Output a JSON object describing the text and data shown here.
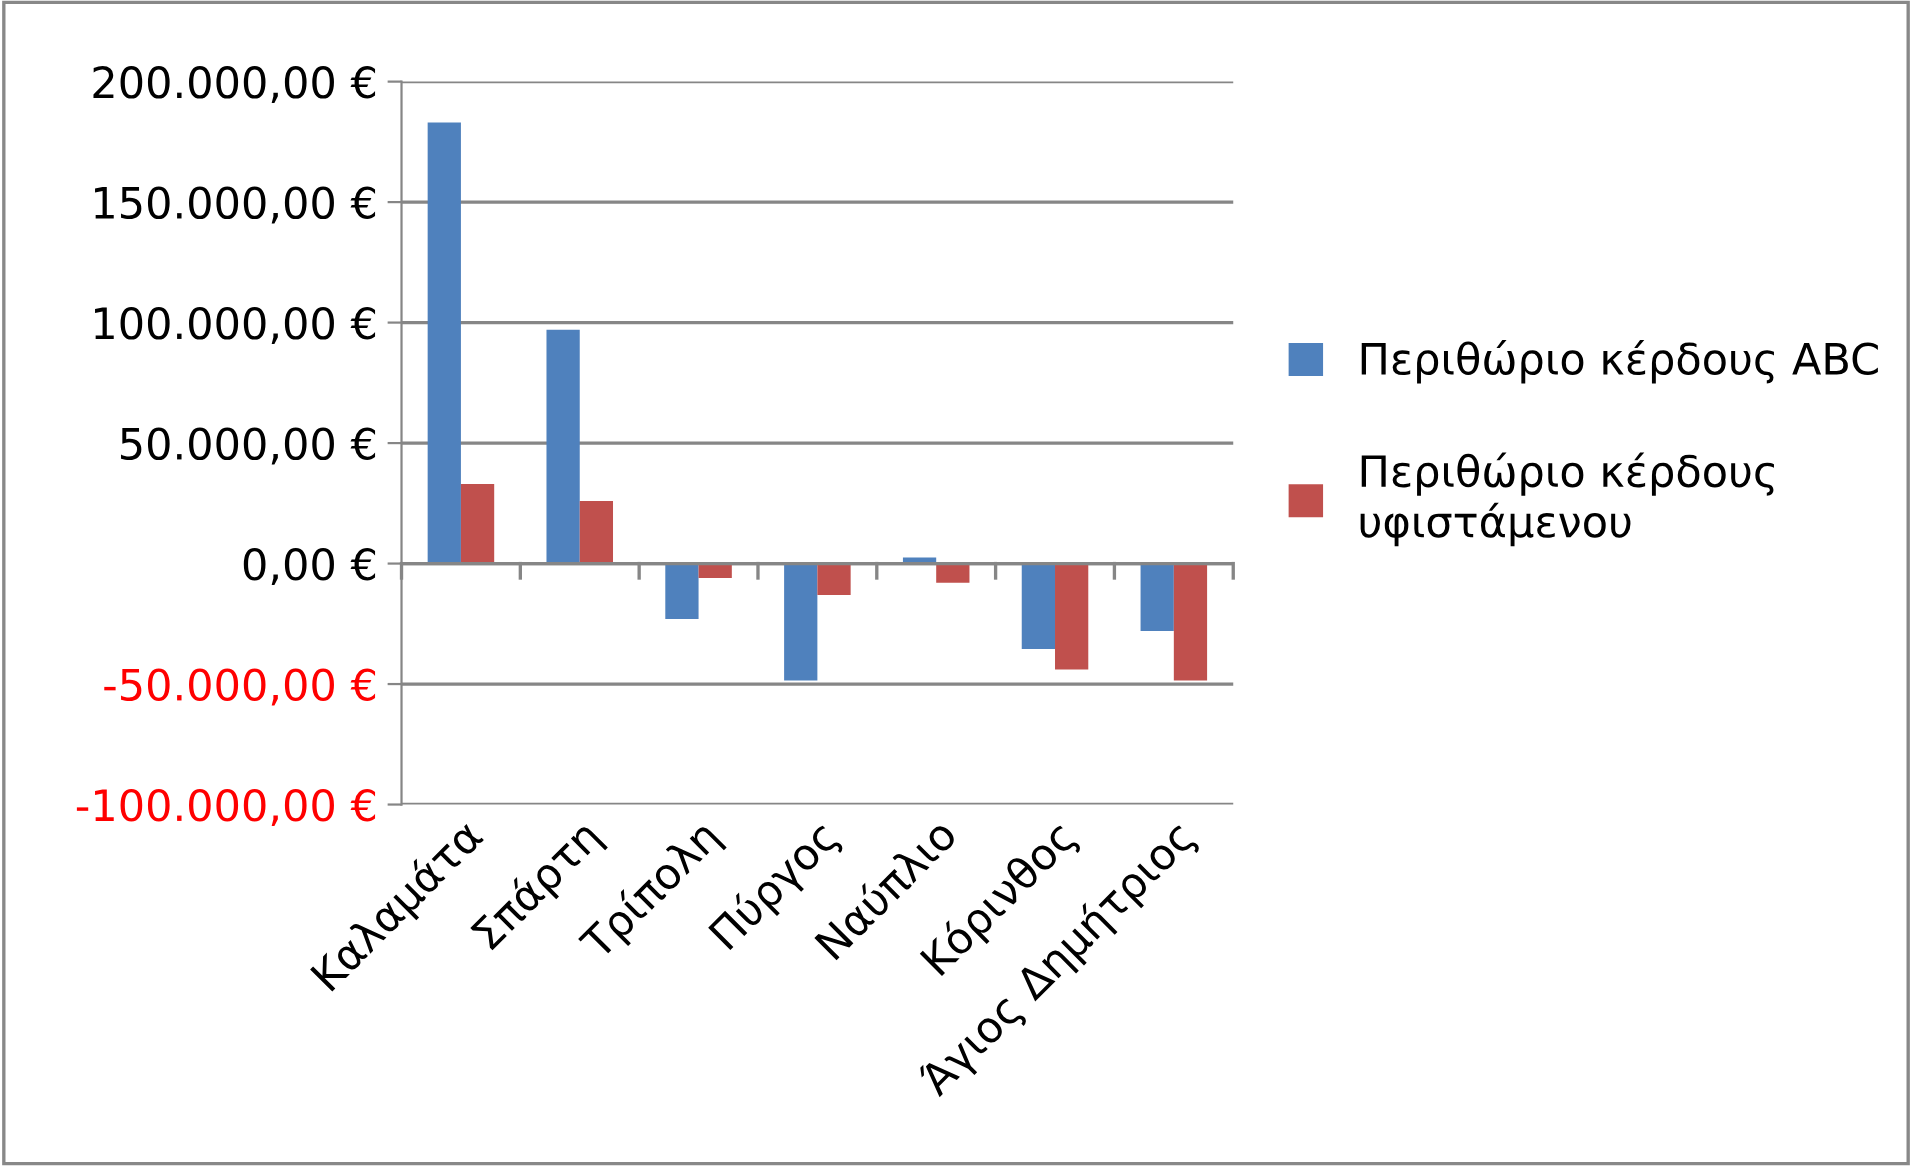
{
  "chart_data": {
    "type": "bar",
    "categories": [
      "Καλαμάτα",
      "Σπάρτη",
      "Τρίπολη",
      "Πύργος",
      "Ναύπλιο",
      "Κόρινθος",
      "Άγιος Δημήτριος"
    ],
    "series": [
      {
        "name": "Περιθώριο κέρδους ABC",
        "color": "#4f81bd",
        "values": [
          183000,
          97000,
          -23000,
          -48500,
          2500,
          -35500,
          -28000
        ]
      },
      {
        "name": "Περιθώριο κέρδους υφιστάμενου",
        "color": "#c0504d",
        "values": [
          33000,
          26000,
          -6000,
          -13000,
          -8000,
          -44000,
          -48500
        ]
      }
    ],
    "ylim": [
      -100000,
      200000
    ],
    "yticks": [
      {
        "value": -100000,
        "label": "-100.000,00 €"
      },
      {
        "value": -50000,
        "label": "-50.000,00 €"
      },
      {
        "value": 0,
        "label": "0,00 €"
      },
      {
        "value": 50000,
        "label": "50.000,00 €"
      },
      {
        "value": 100000,
        "label": "100.000,00 €"
      },
      {
        "value": 150000,
        "label": "150.000,00 €"
      },
      {
        "value": 200000,
        "label": "200.000,00 €"
      }
    ],
    "grid": "y",
    "legend": "right"
  }
}
